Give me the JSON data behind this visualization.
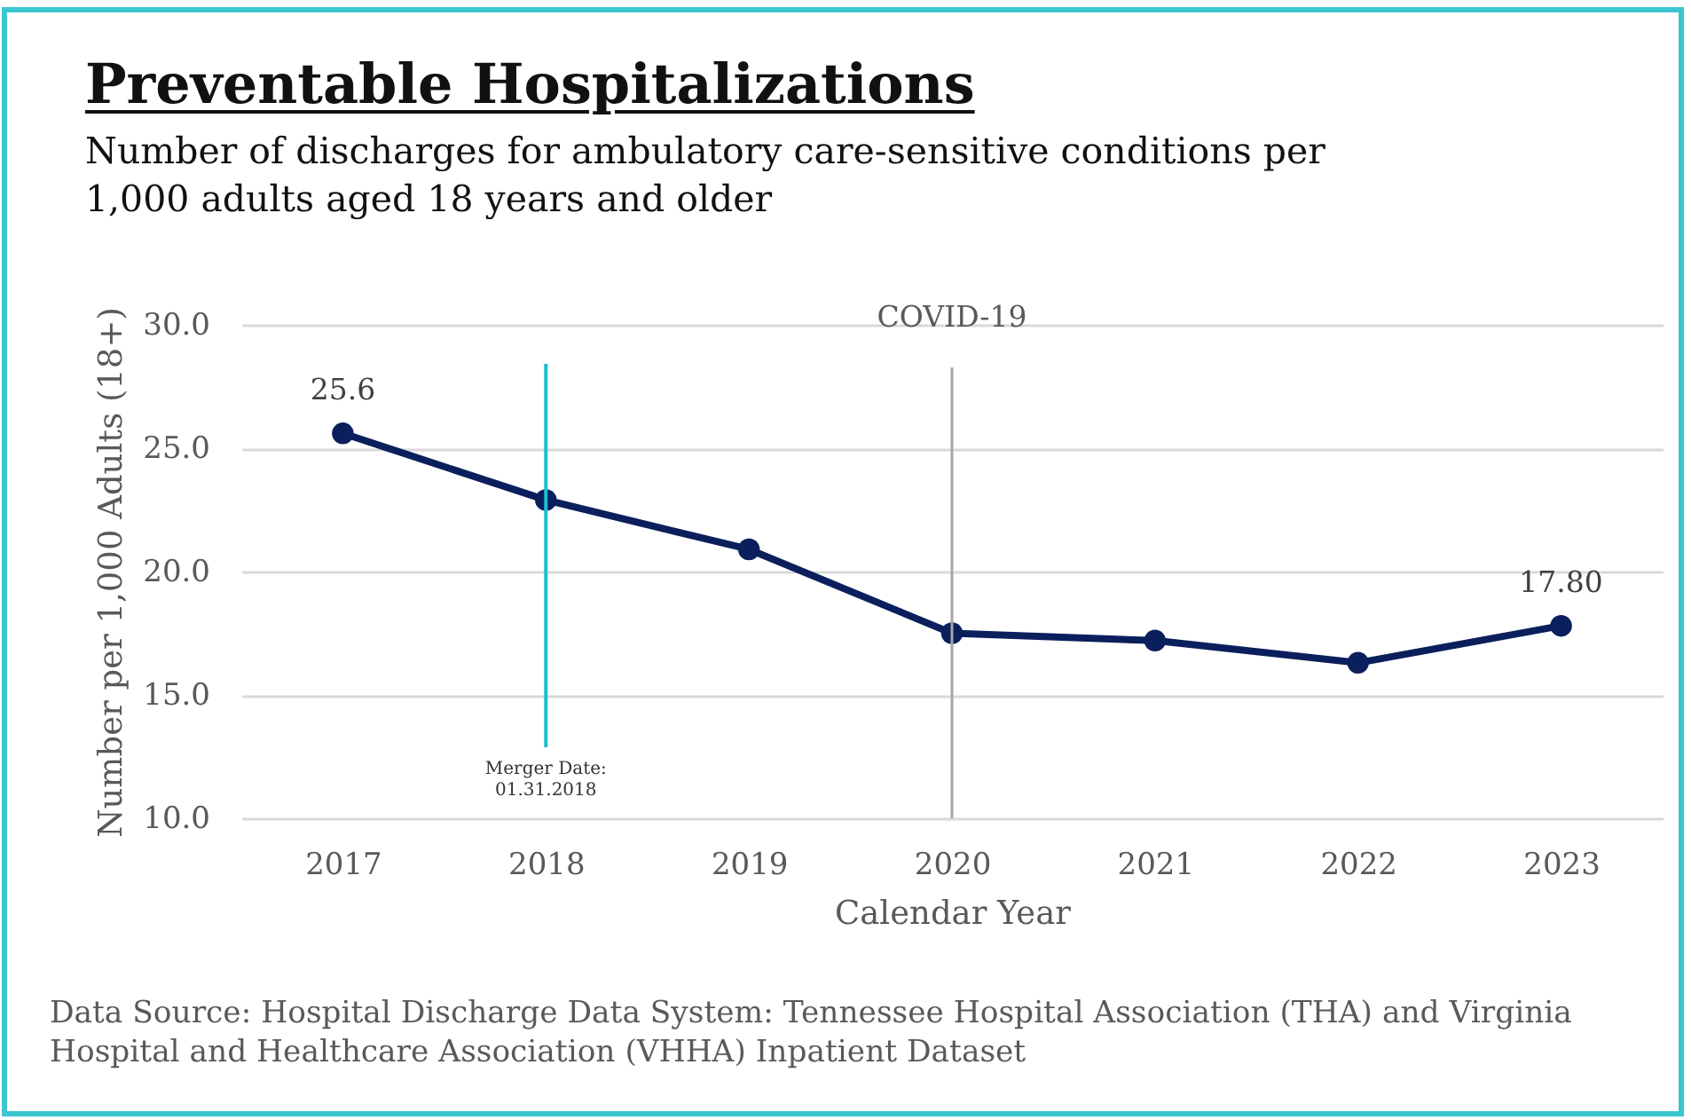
{
  "chart_data": {
    "type": "line",
    "title": "Preventable Hospitalizations",
    "subtitle": "Number of discharges for ambulatory care-sensitive conditions per 1,000 adults aged 18 years and older",
    "xlabel": "Calendar Year",
    "ylabel": "Number per 1,000 Adults (18+)",
    "categories": [
      "2017",
      "2018",
      "2019",
      "2020",
      "2021",
      "2022",
      "2023"
    ],
    "values": [
      25.6,
      22.9,
      20.9,
      17.5,
      17.2,
      16.3,
      17.8
    ],
    "color": "#0b1f5c",
    "marker": "circle",
    "value_labels": [
      "25.6",
      null,
      null,
      null,
      null,
      null,
      "17.80"
    ],
    "ylim": [
      10,
      30
    ],
    "yticks": [
      {
        "value": 10,
        "label": "10.0"
      },
      {
        "value": 15,
        "label": "15.0"
      },
      {
        "value": 20,
        "label": "20.0"
      },
      {
        "value": 25,
        "label": "25.0"
      },
      {
        "value": 30,
        "label": "30.0"
      }
    ],
    "grid": "y",
    "ref_lines": [
      {
        "axis": "x",
        "value": "2018",
        "label": "Merger Date:\n01.31.2018",
        "color": "#1bbfcd"
      },
      {
        "axis": "x",
        "value": "2020",
        "label": "COVID-19",
        "color": "#a6a6a6"
      }
    ],
    "annotations": [
      "Data Source: Hospital Discharge Data System: Tennessee Hospital Association (THA) and Virginia Hospital and Healthcare Association (VHHA) Inpatient Dataset"
    ]
  }
}
